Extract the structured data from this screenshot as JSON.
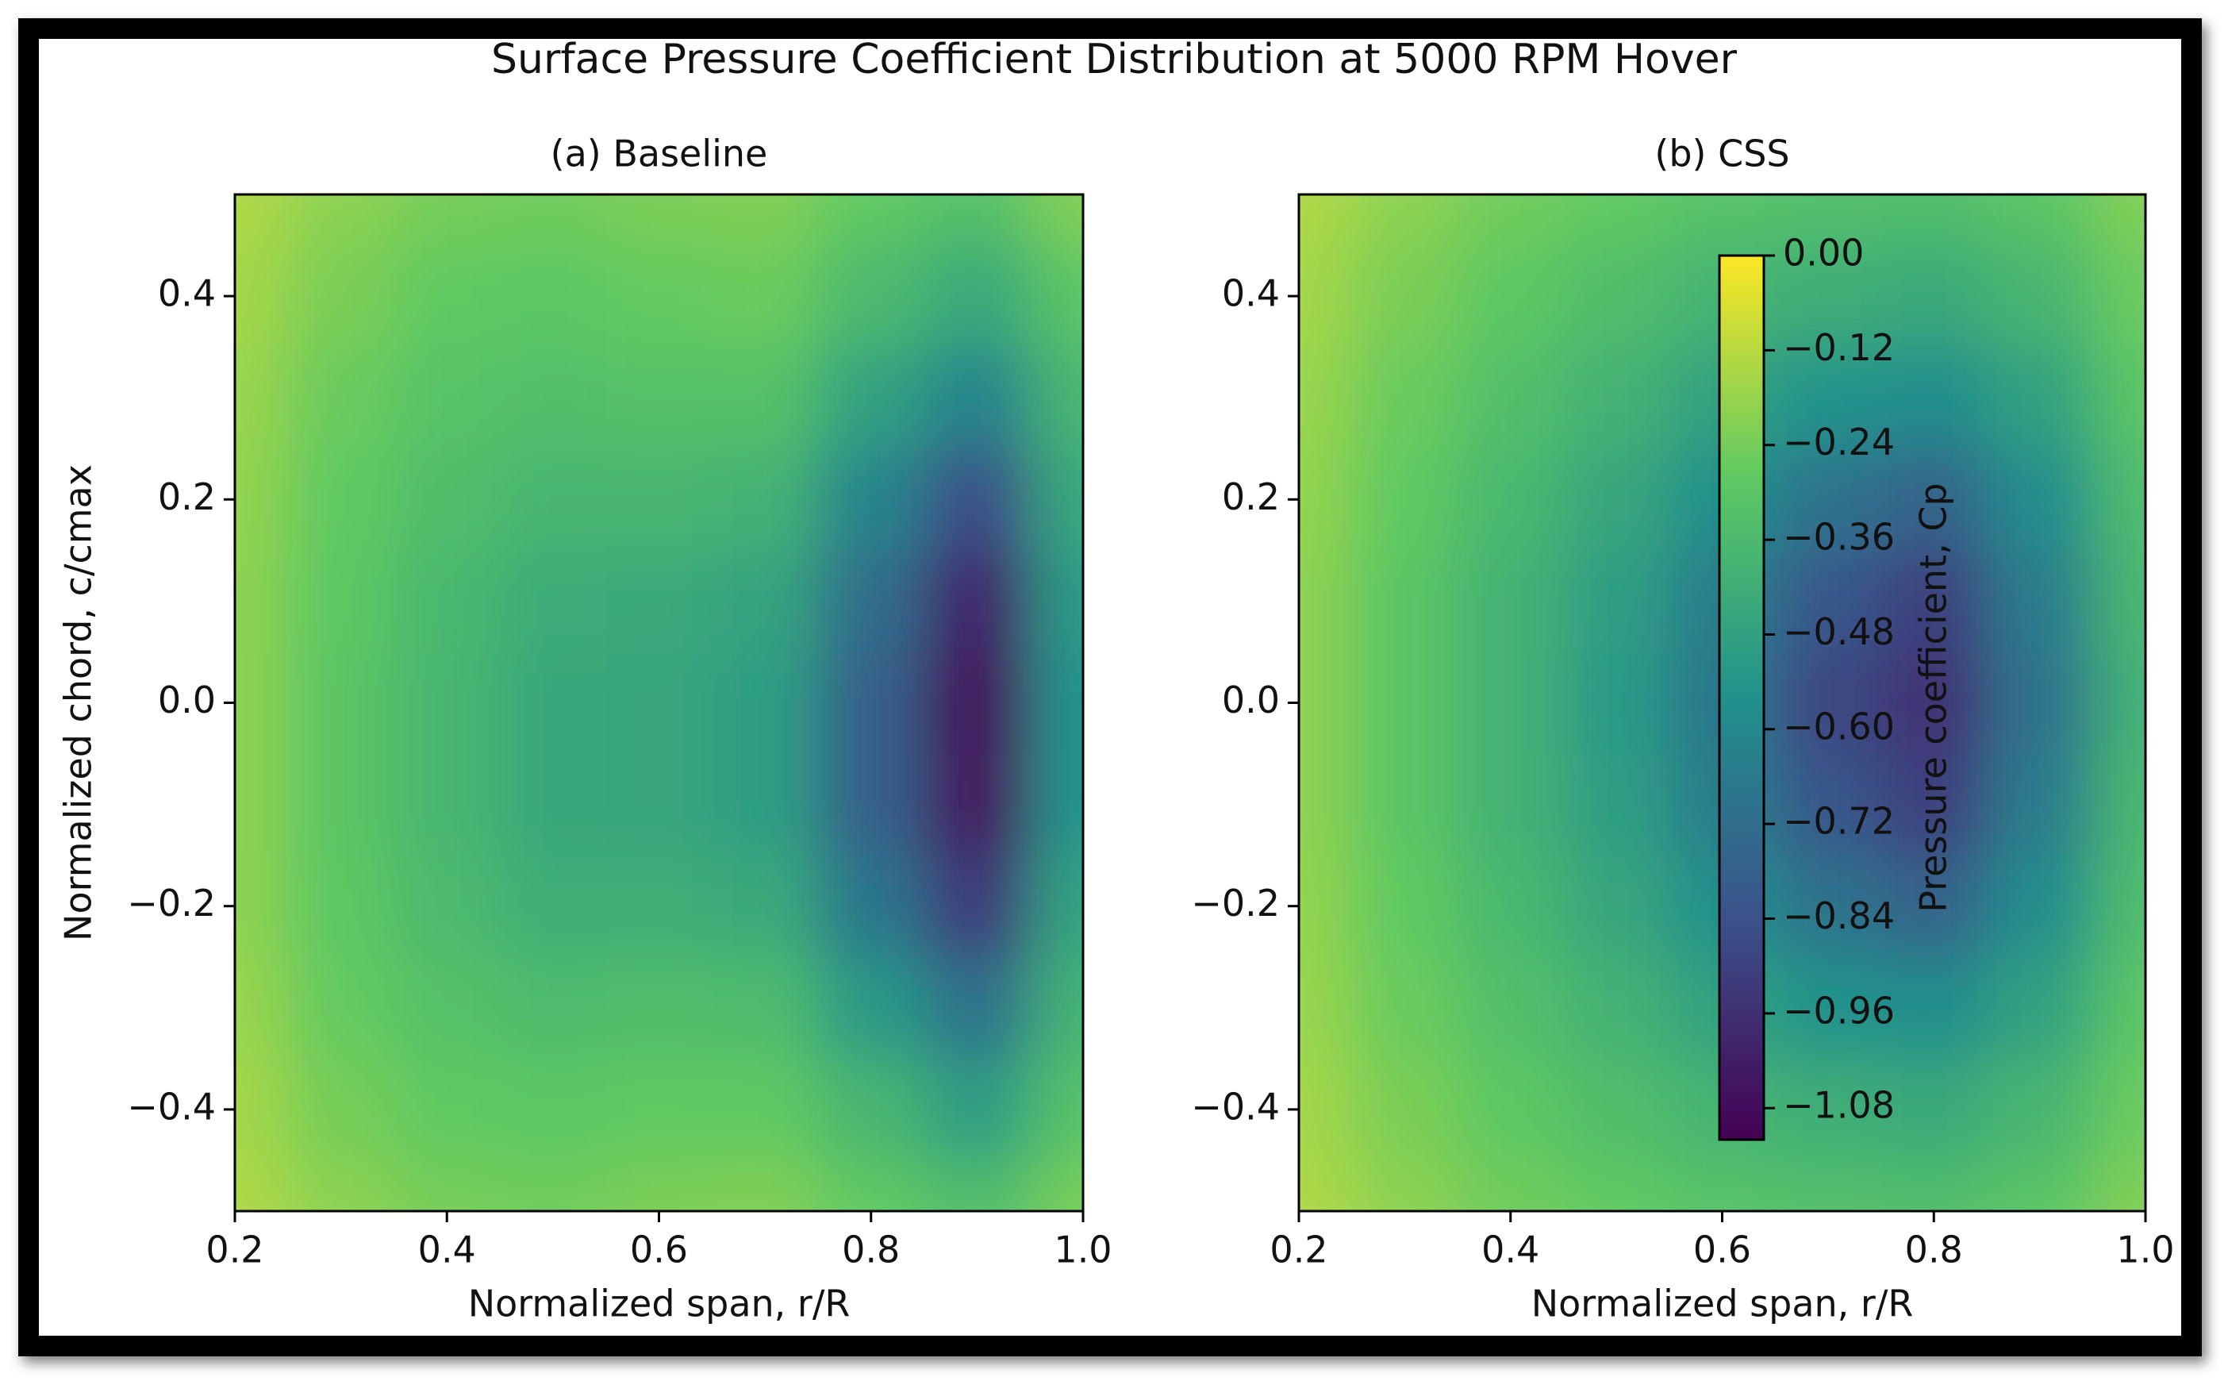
{
  "title": "Surface Pressure Coefficient Distribution at 5000 RPM Hover",
  "chart_data": [
    {
      "type": "contour",
      "title": "(a) Baseline",
      "xlabel": "Normalized span, r/R",
      "ylabel": "Normalized chord, c/cmax",
      "colormap": "viridis",
      "x": [
        0.2,
        0.3,
        0.4,
        0.5,
        0.6,
        0.7,
        0.8,
        0.9,
        1.0
      ],
      "y": [
        0.5,
        0.4,
        0.3,
        0.2,
        0.1,
        0.0,
        -0.1,
        -0.2,
        -0.3,
        -0.4,
        -0.5
      ],
      "z": [
        [
          -0.14,
          -0.2,
          -0.24,
          -0.25,
          -0.23,
          -0.22,
          -0.28,
          -0.32,
          -0.22
        ],
        [
          -0.16,
          -0.23,
          -0.28,
          -0.29,
          -0.27,
          -0.26,
          -0.36,
          -0.44,
          -0.3
        ],
        [
          -0.18,
          -0.26,
          -0.31,
          -0.33,
          -0.32,
          -0.32,
          -0.48,
          -0.62,
          -0.38
        ],
        [
          -0.19,
          -0.28,
          -0.34,
          -0.38,
          -0.38,
          -0.4,
          -0.62,
          -0.85,
          -0.45
        ],
        [
          -0.2,
          -0.29,
          -0.37,
          -0.43,
          -0.44,
          -0.47,
          -0.72,
          -1.0,
          -0.52
        ],
        [
          -0.2,
          -0.3,
          -0.38,
          -0.45,
          -0.46,
          -0.5,
          -0.78,
          -1.08,
          -0.55
        ],
        [
          -0.2,
          -0.3,
          -0.38,
          -0.45,
          -0.46,
          -0.5,
          -0.78,
          -1.06,
          -0.55
        ],
        [
          -0.2,
          -0.29,
          -0.36,
          -0.42,
          -0.42,
          -0.44,
          -0.68,
          -0.92,
          -0.48
        ],
        [
          -0.18,
          -0.27,
          -0.32,
          -0.35,
          -0.34,
          -0.35,
          -0.52,
          -0.7,
          -0.4
        ],
        [
          -0.16,
          -0.24,
          -0.28,
          -0.29,
          -0.28,
          -0.28,
          -0.38,
          -0.5,
          -0.32
        ],
        [
          -0.14,
          -0.2,
          -0.24,
          -0.25,
          -0.23,
          -0.22,
          -0.28,
          -0.34,
          -0.24
        ]
      ],
      "xlim": [
        0.2,
        1.0
      ],
      "ylim": [
        -0.5,
        0.5
      ],
      "xticks": [
        0.2,
        0.4,
        0.6,
        0.8,
        {
          "value": 1.0,
          "label": "1.0"
        }
      ],
      "yticks": [
        {
          "value": -0.4,
          "label": "−0.4"
        },
        {
          "value": -0.2,
          "label": "−0.2"
        },
        {
          "value": 0.0,
          "label": "0.0"
        },
        0.2,
        0.4
      ]
    },
    {
      "type": "contour",
      "title": "(b) CSS",
      "xlabel": "Normalized span, r/R",
      "colormap": "viridis",
      "x": [
        0.2,
        0.3,
        0.4,
        0.5,
        0.6,
        0.7,
        0.8,
        0.9,
        1.0
      ],
      "y": [
        0.5,
        0.4,
        0.3,
        0.2,
        0.1,
        0.0,
        -0.1,
        -0.2,
        -0.3,
        -0.4,
        -0.5
      ],
      "z": [
        [
          -0.14,
          -0.2,
          -0.25,
          -0.28,
          -0.31,
          -0.33,
          -0.34,
          -0.3,
          -0.22
        ],
        [
          -0.16,
          -0.23,
          -0.29,
          -0.34,
          -0.39,
          -0.42,
          -0.44,
          -0.38,
          -0.26
        ],
        [
          -0.18,
          -0.26,
          -0.33,
          -0.4,
          -0.48,
          -0.55,
          -0.58,
          -0.48,
          -0.3
        ],
        [
          -0.19,
          -0.28,
          -0.37,
          -0.46,
          -0.57,
          -0.7,
          -0.76,
          -0.58,
          -0.35
        ],
        [
          -0.2,
          -0.3,
          -0.4,
          -0.5,
          -0.65,
          -0.82,
          -0.9,
          -0.66,
          -0.38
        ],
        [
          -0.2,
          -0.3,
          -0.4,
          -0.52,
          -0.68,
          -0.88,
          -0.95,
          -0.7,
          -0.4
        ],
        [
          -0.2,
          -0.3,
          -0.4,
          -0.5,
          -0.65,
          -0.82,
          -0.9,
          -0.66,
          -0.38
        ],
        [
          -0.19,
          -0.28,
          -0.37,
          -0.46,
          -0.57,
          -0.7,
          -0.76,
          -0.58,
          -0.35
        ],
        [
          -0.18,
          -0.26,
          -0.33,
          -0.4,
          -0.48,
          -0.55,
          -0.58,
          -0.48,
          -0.3
        ],
        [
          -0.16,
          -0.23,
          -0.29,
          -0.34,
          -0.39,
          -0.42,
          -0.44,
          -0.38,
          -0.26
        ],
        [
          -0.14,
          -0.2,
          -0.25,
          -0.28,
          -0.31,
          -0.33,
          -0.34,
          -0.3,
          -0.22
        ]
      ],
      "xlim": [
        0.2,
        1.0
      ],
      "ylim": [
        -0.5,
        0.5
      ],
      "xticks": [
        0.2,
        0.4,
        0.6,
        0.8,
        {
          "value": 1.0,
          "label": "1.0"
        }
      ],
      "yticks": [
        {
          "value": -0.4,
          "label": "−0.4"
        },
        {
          "value": -0.2,
          "label": "−0.2"
        },
        {
          "value": 0.0,
          "label": "0.0"
        },
        0.2,
        0.4
      ],
      "colorbar": {
        "label": "Pressure coefficient, Cp",
        "lim": [
          -1.12,
          0.0
        ],
        "ticks": [
          {
            "value": 0.0,
            "label": "0.00"
          },
          {
            "value": -0.12,
            "label": "−0.12"
          },
          {
            "value": -0.24,
            "label": "−0.24"
          },
          {
            "value": -0.36,
            "label": "−0.36"
          },
          {
            "value": -0.48,
            "label": "−0.48"
          },
          {
            "value": -0.6,
            "label": "−0.60"
          },
          {
            "value": -0.72,
            "label": "−0.72"
          },
          {
            "value": -0.84,
            "label": "−0.84"
          },
          {
            "value": -0.96,
            "label": "−0.96"
          },
          {
            "value": -1.08,
            "label": "−1.08"
          }
        ]
      }
    }
  ]
}
